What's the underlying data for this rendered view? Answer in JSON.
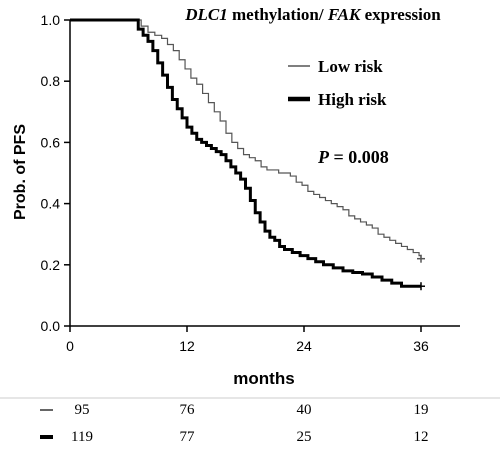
{
  "chart_data": {
    "type": "line",
    "chart_style": "kaplan-meier step plot",
    "title_parts": [
      {
        "text": "DLC1",
        "italic": true
      },
      {
        "text": " methylation/ ",
        "italic": false
      },
      {
        "text": "FAK",
        "italic": true
      },
      {
        "text": " expression",
        "italic": false
      }
    ],
    "xlabel": "months",
    "ylabel": "Prob. of PFS",
    "xlim": [
      0,
      40
    ],
    "ylim": [
      0,
      1.0
    ],
    "xticks": [
      "0",
      "12",
      "24",
      "36"
    ],
    "yticks": [
      "0.0",
      "0.2",
      "0.4",
      "0.6",
      "0.8",
      "1.0"
    ],
    "grid": false,
    "legend_position": "top-right",
    "annotation": {
      "label": "P",
      "value": " = 0.008"
    },
    "series": [
      {
        "name": "Low risk",
        "color": "#555555",
        "style": "thin",
        "x": [
          0,
          6.6,
          7.3,
          8.0,
          8.7,
          9.4,
          10.0,
          10.6,
          11.2,
          11.8,
          12.4,
          13.0,
          13.6,
          14.2,
          14.8,
          15.4,
          16.0,
          16.6,
          17.2,
          17.8,
          18.4,
          19.0,
          19.6,
          20.2,
          20.8,
          21.4,
          22.0,
          22.6,
          23.2,
          23.8,
          24.4,
          25.0,
          25.6,
          26.2,
          26.8,
          27.4,
          28.0,
          28.6,
          29.2,
          29.8,
          30.4,
          31.0,
          31.6,
          32.2,
          32.8,
          33.4,
          34.0,
          34.6,
          35.2,
          35.8,
          36.0
        ],
        "y": [
          1.0,
          1.0,
          0.98,
          0.96,
          0.95,
          0.94,
          0.92,
          0.9,
          0.87,
          0.84,
          0.81,
          0.79,
          0.76,
          0.73,
          0.7,
          0.67,
          0.63,
          0.6,
          0.58,
          0.56,
          0.55,
          0.54,
          0.52,
          0.51,
          0.51,
          0.5,
          0.5,
          0.49,
          0.47,
          0.46,
          0.44,
          0.43,
          0.42,
          0.41,
          0.4,
          0.39,
          0.38,
          0.36,
          0.35,
          0.34,
          0.33,
          0.32,
          0.3,
          0.29,
          0.28,
          0.27,
          0.26,
          0.25,
          0.24,
          0.23,
          0.22
        ]
      },
      {
        "name": "High risk",
        "color": "#000000",
        "style": "thick",
        "x": [
          0,
          6.3,
          7.0,
          7.5,
          8.0,
          8.5,
          9.0,
          9.5,
          10.0,
          10.5,
          11.0,
          11.5,
          12.0,
          12.5,
          13.0,
          13.5,
          14.0,
          14.5,
          15.0,
          15.5,
          16.0,
          16.5,
          17.0,
          17.5,
          18.0,
          18.5,
          19.0,
          19.5,
          20.0,
          20.5,
          21.0,
          21.5,
          22.0,
          22.8,
          23.6,
          24.4,
          25.2,
          26.0,
          27.0,
          28.0,
          29.0,
          30.0,
          31.0,
          32.0,
          33.0,
          34.0,
          36.0
        ],
        "y": [
          1.0,
          1.0,
          0.97,
          0.95,
          0.93,
          0.9,
          0.86,
          0.82,
          0.78,
          0.74,
          0.71,
          0.68,
          0.65,
          0.63,
          0.61,
          0.6,
          0.59,
          0.58,
          0.57,
          0.56,
          0.54,
          0.52,
          0.5,
          0.48,
          0.45,
          0.41,
          0.37,
          0.34,
          0.31,
          0.29,
          0.28,
          0.26,
          0.25,
          0.24,
          0.23,
          0.22,
          0.21,
          0.2,
          0.19,
          0.18,
          0.175,
          0.17,
          0.16,
          0.15,
          0.14,
          0.13,
          0.13
        ]
      }
    ],
    "number_at_risk": {
      "times": [
        0,
        12,
        24,
        36
      ],
      "rows": [
        {
          "line": "thin",
          "counts": [
            "95",
            "76",
            "40",
            "19"
          ]
        },
        {
          "line": "thick",
          "counts": [
            "119",
            "77",
            "25",
            "12"
          ]
        }
      ]
    }
  }
}
